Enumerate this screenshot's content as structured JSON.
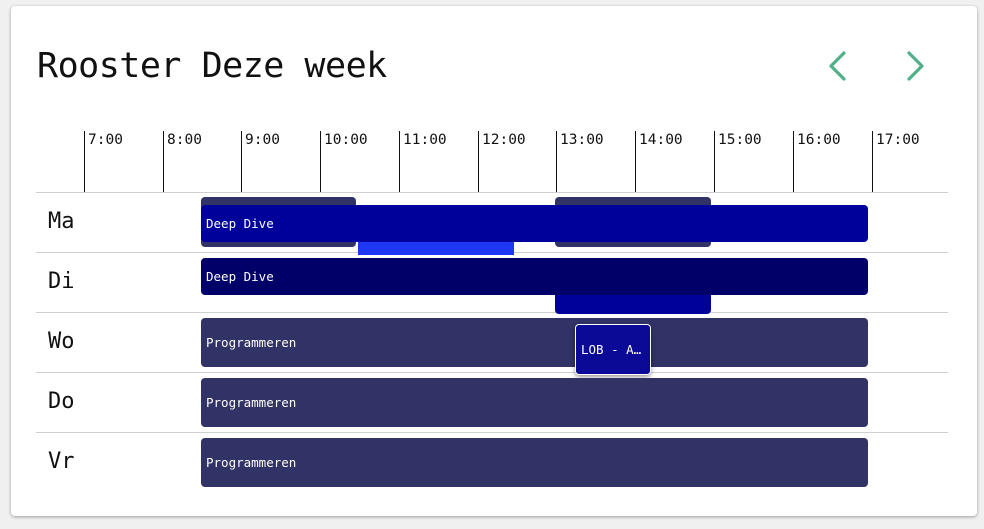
{
  "header": {
    "title": "Rooster Deze week",
    "prev_icon": "chevron-left-icon",
    "next_icon": "chevron-right-icon",
    "accent_color": "#4fb08a"
  },
  "times": [
    "7:00",
    "8:00",
    "9:00",
    "10:00",
    "11:00",
    "12:00",
    "13:00",
    "14:00",
    "15:00",
    "16:00",
    "17:00"
  ],
  "days": [
    "Ma",
    "Di",
    "Wo",
    "Do",
    "Vr"
  ],
  "events": {
    "ma_main": "Deep Dive",
    "di_main": "Deep Dive",
    "wo_main": "Programmeren",
    "wo_popup": "LOB - A…",
    "do_main": "Programmeren",
    "vr_main": "Programmeren"
  },
  "colors": {
    "navy": "#313266",
    "blue": "#00009a",
    "dark_blue": "#000068",
    "bright_blue": "#1e37f5"
  }
}
